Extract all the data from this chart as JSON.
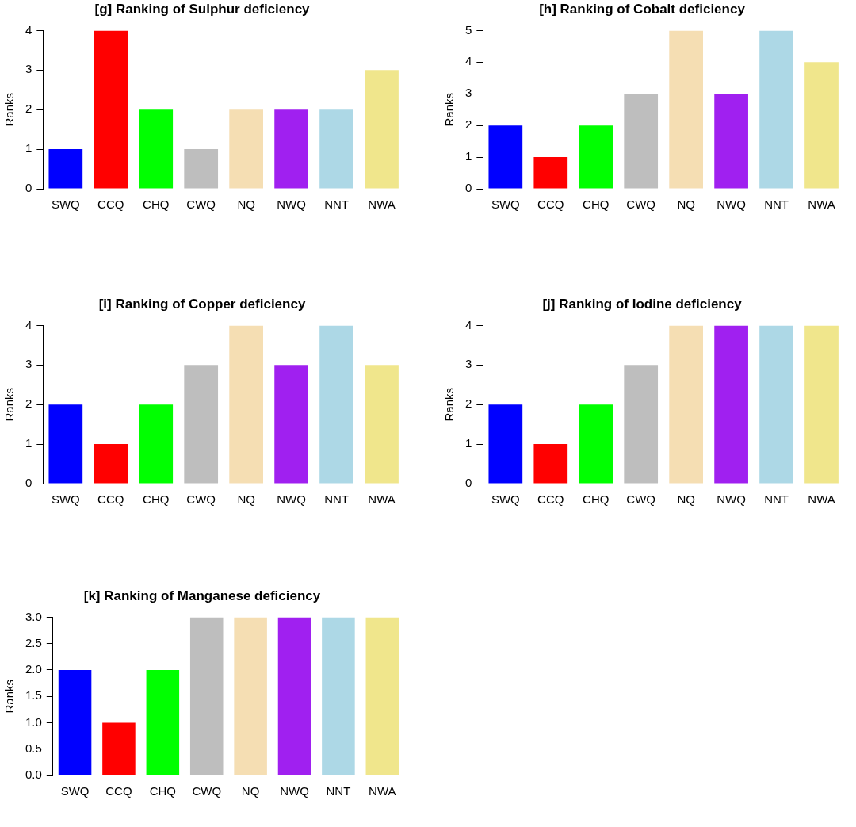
{
  "chart_data": [
    {
      "type": "bar",
      "title": "[g] Ranking of Sulphur deficiency",
      "ylabel": "Ranks",
      "categories": [
        "SWQ",
        "CCQ",
        "CHQ",
        "CWQ",
        "NQ",
        "NWQ",
        "NNT",
        "NWA"
      ],
      "values": [
        1,
        4,
        2,
        1,
        2,
        2,
        2,
        3
      ],
      "colors": [
        "#0000ff",
        "#ff0000",
        "#00ff00",
        "#bebebe",
        "#f5deb3",
        "#a020f0",
        "#add8e6",
        "#f0e68c"
      ],
      "ylim": [
        0,
        4
      ],
      "yticks": [
        0,
        1,
        2,
        3,
        4
      ],
      "grid": false
    },
    {
      "type": "bar",
      "title": "[h] Ranking of Cobalt deficiency",
      "ylabel": "Ranks",
      "categories": [
        "SWQ",
        "CCQ",
        "CHQ",
        "CWQ",
        "NQ",
        "NWQ",
        "NNT",
        "NWA"
      ],
      "values": [
        2,
        1,
        2,
        3,
        5,
        3,
        5,
        4
      ],
      "colors": [
        "#0000ff",
        "#ff0000",
        "#00ff00",
        "#bebebe",
        "#f5deb3",
        "#a020f0",
        "#add8e6",
        "#f0e68c"
      ],
      "ylim": [
        0,
        5
      ],
      "yticks": [
        0,
        1,
        2,
        3,
        4,
        5
      ],
      "grid": false
    },
    {
      "type": "bar",
      "title": "[i] Ranking of Copper deficiency",
      "ylabel": "Ranks",
      "categories": [
        "SWQ",
        "CCQ",
        "CHQ",
        "CWQ",
        "NQ",
        "NWQ",
        "NNT",
        "NWA"
      ],
      "values": [
        2,
        1,
        2,
        3,
        4,
        3,
        4,
        3
      ],
      "colors": [
        "#0000ff",
        "#ff0000",
        "#00ff00",
        "#bebebe",
        "#f5deb3",
        "#a020f0",
        "#add8e6",
        "#f0e68c"
      ],
      "ylim": [
        0,
        4
      ],
      "yticks": [
        0,
        1,
        2,
        3,
        4
      ],
      "grid": false
    },
    {
      "type": "bar",
      "title": "[j] Ranking of Iodine deficiency",
      "ylabel": "Ranks",
      "categories": [
        "SWQ",
        "CCQ",
        "CHQ",
        "CWQ",
        "NQ",
        "NWQ",
        "NNT",
        "NWA"
      ],
      "values": [
        2,
        1,
        2,
        3,
        4,
        4,
        4,
        4
      ],
      "colors": [
        "#0000ff",
        "#ff0000",
        "#00ff00",
        "#bebebe",
        "#f5deb3",
        "#a020f0",
        "#add8e6",
        "#f0e68c"
      ],
      "ylim": [
        0,
        4
      ],
      "yticks": [
        0,
        1,
        2,
        3,
        4
      ],
      "grid": false
    },
    {
      "type": "bar",
      "title": "[k] Ranking of Manganese deficiency",
      "ylabel": "Ranks",
      "categories": [
        "SWQ",
        "CCQ",
        "CHQ",
        "CWQ",
        "NQ",
        "NWQ",
        "NNT",
        "NWA"
      ],
      "values": [
        2,
        1,
        2,
        3,
        3,
        3,
        3,
        3
      ],
      "colors": [
        "#0000ff",
        "#ff0000",
        "#00ff00",
        "#bebebe",
        "#f5deb3",
        "#a020f0",
        "#add8e6",
        "#f0e68c"
      ],
      "ylim": [
        0,
        3
      ],
      "yticks": [
        {
          "value": 0,
          "label": "0.0"
        },
        {
          "value": 0.5,
          "label": "0.5"
        },
        {
          "value": 1,
          "label": "1.0"
        },
        {
          "value": 1.5,
          "label": "1.5"
        },
        {
          "value": 2,
          "label": "2.0"
        },
        {
          "value": 2.5,
          "label": "2.5"
        },
        {
          "value": 3,
          "label": "3.0"
        }
      ],
      "grid": false
    }
  ]
}
